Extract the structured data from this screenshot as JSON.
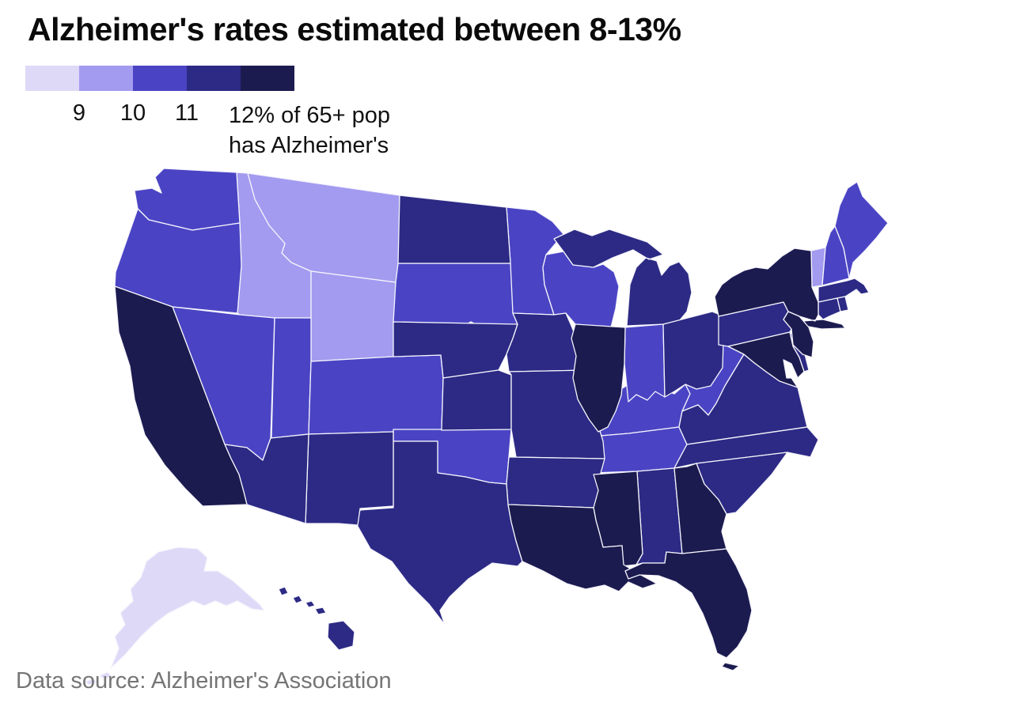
{
  "title": "Alzheimer's rates estimated between 8-13%",
  "source": "Data source: Alzheimer's Association",
  "legend": {
    "ticks": [
      "9",
      "10",
      "11"
    ],
    "last_label": "12% of 65+ pop\nhas Alzheimer's"
  },
  "chart_data": {
    "type": "choropleth",
    "title": "Alzheimer's rates estimated between 8-13%",
    "unit": "% of population 65+ with Alzheimer's",
    "range": [
      8,
      13
    ],
    "bins": [
      {
        "label": "8-9%",
        "color": "#ded9f7"
      },
      {
        "label": "9-10%",
        "color": "#a39bef"
      },
      {
        "label": "10-11%",
        "color": "#4a44c4"
      },
      {
        "label": "11-12%",
        "color": "#2c2a84"
      },
      {
        "label": "12-13%",
        "color": "#1c1b4f"
      }
    ],
    "states": [
      {
        "code": "AK",
        "name": "Alaska",
        "bin": 0
      },
      {
        "code": "MT",
        "name": "Montana",
        "bin": 1
      },
      {
        "code": "ID",
        "name": "Idaho",
        "bin": 1
      },
      {
        "code": "WY",
        "name": "Wyoming",
        "bin": 1
      },
      {
        "code": "VT",
        "name": "Vermont",
        "bin": 1
      },
      {
        "code": "WA",
        "name": "Washington",
        "bin": 2
      },
      {
        "code": "OR",
        "name": "Oregon",
        "bin": 2
      },
      {
        "code": "NV",
        "name": "Nevada",
        "bin": 2
      },
      {
        "code": "UT",
        "name": "Utah",
        "bin": 2
      },
      {
        "code": "CO",
        "name": "Colorado",
        "bin": 2
      },
      {
        "code": "SD",
        "name": "South Dakota",
        "bin": 2
      },
      {
        "code": "MN",
        "name": "Minnesota",
        "bin": 2
      },
      {
        "code": "WI",
        "name": "Wisconsin",
        "bin": 2
      },
      {
        "code": "OK",
        "name": "Oklahoma",
        "bin": 2
      },
      {
        "code": "KY",
        "name": "Kentucky",
        "bin": 2
      },
      {
        "code": "TN",
        "name": "Tennessee",
        "bin": 2
      },
      {
        "code": "WV",
        "name": "West Virginia",
        "bin": 2
      },
      {
        "code": "IN",
        "name": "Indiana",
        "bin": 2
      },
      {
        "code": "ME",
        "name": "Maine",
        "bin": 2
      },
      {
        "code": "NH",
        "name": "New Hampshire",
        "bin": 2
      },
      {
        "code": "ND",
        "name": "North Dakota",
        "bin": 3
      },
      {
        "code": "NE",
        "name": "Nebraska",
        "bin": 3
      },
      {
        "code": "IA",
        "name": "Iowa",
        "bin": 3
      },
      {
        "code": "KS",
        "name": "Kansas",
        "bin": 3
      },
      {
        "code": "MO",
        "name": "Missouri",
        "bin": 3
      },
      {
        "code": "MI",
        "name": "Michigan",
        "bin": 3
      },
      {
        "code": "OH",
        "name": "Ohio",
        "bin": 3
      },
      {
        "code": "PA",
        "name": "Pennsylvania",
        "bin": 3
      },
      {
        "code": "MA",
        "name": "Massachusetts",
        "bin": 3
      },
      {
        "code": "CT",
        "name": "Connecticut",
        "bin": 3
      },
      {
        "code": "RI",
        "name": "Rhode Island",
        "bin": 3
      },
      {
        "code": "VA",
        "name": "Virginia",
        "bin": 3
      },
      {
        "code": "NC",
        "name": "North Carolina",
        "bin": 3
      },
      {
        "code": "SC",
        "name": "South Carolina",
        "bin": 3
      },
      {
        "code": "AL",
        "name": "Alabama",
        "bin": 3
      },
      {
        "code": "AR",
        "name": "Arkansas",
        "bin": 3
      },
      {
        "code": "TX",
        "name": "Texas",
        "bin": 3
      },
      {
        "code": "NM",
        "name": "New Mexico",
        "bin": 3
      },
      {
        "code": "AZ",
        "name": "Arizona",
        "bin": 3
      },
      {
        "code": "HI",
        "name": "Hawaii",
        "bin": 3
      },
      {
        "code": "DE",
        "name": "Delaware",
        "bin": 3
      },
      {
        "code": "CA",
        "name": "California",
        "bin": 4
      },
      {
        "code": "IL",
        "name": "Illinois",
        "bin": 4
      },
      {
        "code": "NY",
        "name": "New York",
        "bin": 4
      },
      {
        "code": "NJ",
        "name": "New Jersey",
        "bin": 4
      },
      {
        "code": "MD",
        "name": "Maryland",
        "bin": 4
      },
      {
        "code": "MS",
        "name": "Mississippi",
        "bin": 4
      },
      {
        "code": "LA",
        "name": "Louisiana",
        "bin": 4
      },
      {
        "code": "GA",
        "name": "Georgia",
        "bin": 4
      },
      {
        "code": "FL",
        "name": "Florida",
        "bin": 4
      }
    ]
  }
}
